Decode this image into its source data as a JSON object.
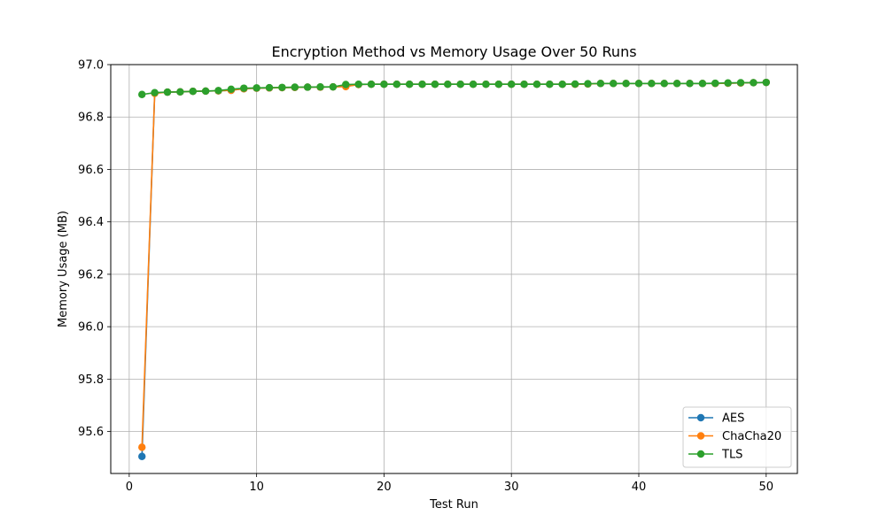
{
  "chart_data": {
    "type": "line",
    "title": "Encryption Method vs Memory Usage Over 50 Runs",
    "xlabel": "Test Run",
    "ylabel": "Memory Usage (MB)",
    "xlim": [
      -1.45,
      52.45
    ],
    "ylim": [
      95.44,
      97.0
    ],
    "xticks": [
      0,
      10,
      20,
      30,
      40,
      50
    ],
    "yticks": [
      95.6,
      95.8,
      96.0,
      96.2,
      96.4,
      96.6,
      96.8,
      97.0
    ],
    "ytick_labels": [
      "95.6",
      "95.8",
      "96.0",
      "96.2",
      "96.4",
      "96.6",
      "96.8",
      "97.0"
    ],
    "grid": true,
    "legend_position": "bottom-right",
    "x": [
      1,
      2,
      3,
      4,
      5,
      6,
      7,
      8,
      9,
      10,
      11,
      12,
      13,
      14,
      15,
      16,
      17,
      18,
      19,
      20,
      21,
      22,
      23,
      24,
      25,
      26,
      27,
      28,
      29,
      30,
      31,
      32,
      33,
      34,
      35,
      36,
      37,
      38,
      39,
      40,
      41,
      42,
      43,
      44,
      45,
      46,
      47,
      48,
      49,
      50
    ],
    "series": [
      {
        "name": "AES",
        "color": "#1f77b4",
        "values": [
          95.505,
          96.892,
          96.895,
          96.896,
          96.898,
          96.899,
          96.9,
          96.902,
          96.908,
          96.91,
          96.911,
          96.912,
          96.913,
          96.914,
          96.914,
          96.915,
          96.917,
          96.924,
          96.925,
          96.925,
          96.925,
          96.925,
          96.925,
          96.925,
          96.925,
          96.925,
          96.925,
          96.925,
          96.925,
          96.925,
          96.925,
          96.925,
          96.925,
          96.925,
          96.925,
          96.926,
          96.928,
          96.928,
          96.928,
          96.928,
          96.928,
          96.928,
          96.928,
          96.928,
          96.928,
          96.928,
          96.929,
          96.93,
          96.931,
          96.932
        ]
      },
      {
        "name": "ChaCha20",
        "color": "#ff7f0e",
        "values": [
          95.54,
          96.89,
          96.895,
          96.896,
          96.898,
          96.899,
          96.9,
          96.902,
          96.908,
          96.91,
          96.911,
          96.912,
          96.913,
          96.914,
          96.914,
          96.915,
          96.916,
          96.924,
          96.925,
          96.925,
          96.925,
          96.925,
          96.925,
          96.925,
          96.925,
          96.925,
          96.925,
          96.925,
          96.925,
          96.925,
          96.925,
          96.925,
          96.925,
          96.925,
          96.925,
          96.926,
          96.928,
          96.928,
          96.928,
          96.928,
          96.928,
          96.928,
          96.928,
          96.928,
          96.928,
          96.928,
          96.929,
          96.93,
          96.931,
          96.932
        ]
      },
      {
        "name": "TLS",
        "color": "#2ca02c",
        "values": [
          96.886,
          96.893,
          96.895,
          96.896,
          96.898,
          96.899,
          96.901,
          96.906,
          96.91,
          96.911,
          96.912,
          96.913,
          96.914,
          96.914,
          96.915,
          96.915,
          96.924,
          96.925,
          96.925,
          96.925,
          96.925,
          96.925,
          96.925,
          96.925,
          96.925,
          96.925,
          96.925,
          96.925,
          96.925,
          96.925,
          96.925,
          96.925,
          96.925,
          96.925,
          96.926,
          96.927,
          96.928,
          96.928,
          96.928,
          96.928,
          96.928,
          96.928,
          96.928,
          96.928,
          96.928,
          96.929,
          96.93,
          96.931,
          96.931,
          96.932
        ]
      }
    ]
  }
}
